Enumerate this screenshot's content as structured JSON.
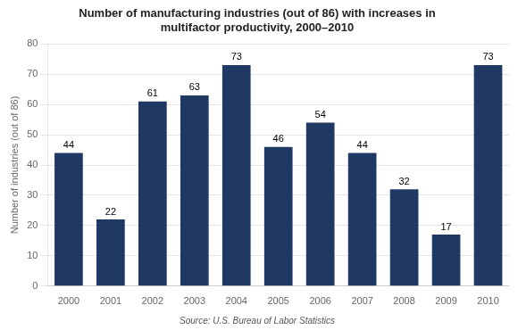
{
  "chart_data": {
    "type": "bar",
    "title": "Number of manufacturing industries (out of 86) with increases in\nmultifactor productivity, 2000–2010",
    "y_label": "Number of industries (out of 86)",
    "annotation": "Source: U.S. Bureau of Labor Statistics",
    "categories": [
      "2000",
      "2001",
      "2002",
      "2003",
      "2004",
      "2005",
      "2006",
      "2007",
      "2008",
      "2009",
      "2010"
    ],
    "values": [
      44,
      22,
      61,
      63,
      73,
      46,
      54,
      44,
      32,
      17,
      73
    ],
    "color": "#1F3864",
    "ylim": [
      0,
      80
    ],
    "yticks": [
      0,
      10,
      20,
      30,
      40,
      50,
      60,
      70,
      80
    ],
    "grid": true,
    "data_labels": true
  }
}
